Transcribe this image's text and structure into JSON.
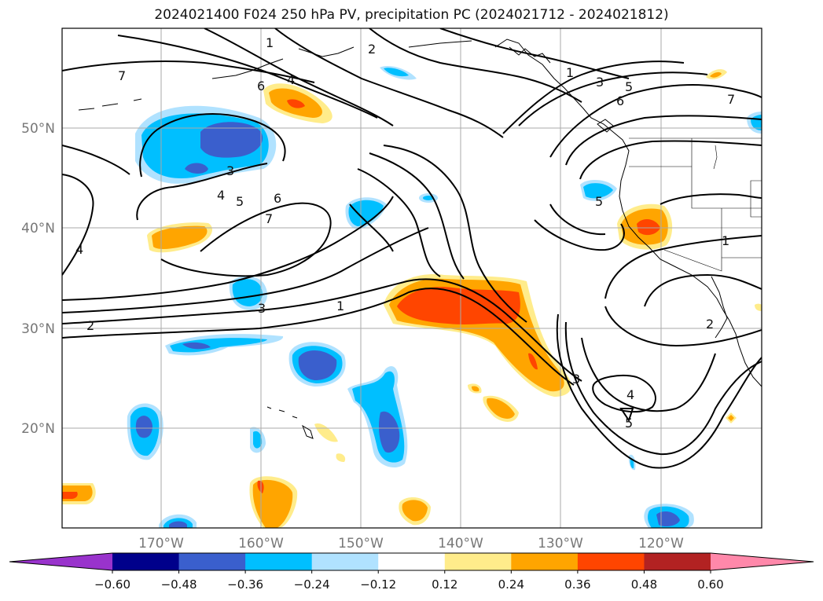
{
  "title": "2024021400 F024 250 hPa PV, precipitation PC (2024021712 - 2024021812)",
  "map": {
    "lon_labels": [
      "170°W",
      "160°W",
      "150°W",
      "140°W",
      "130°W",
      "120°W"
    ],
    "lat_labels": [
      "50°N",
      "40°N",
      "30°N",
      "20°N"
    ],
    "contour_labels": [
      "1",
      "2",
      "3",
      "4",
      "5",
      "6",
      "7"
    ]
  },
  "colorbar": {
    "ticks": [
      "−0.60",
      "−0.48",
      "−0.36",
      "−0.24",
      "−0.12",
      "0.12",
      "0.24",
      "0.36",
      "0.48",
      "0.60"
    ],
    "colors": [
      "#9933cc",
      "#00008b",
      "#3a5fcd",
      "#00bfff",
      "#b0e2ff",
      "#ffffff",
      "#ffec8b",
      "#ffa500",
      "#ff4500",
      "#b22222",
      "#ff88aa"
    ]
  }
}
